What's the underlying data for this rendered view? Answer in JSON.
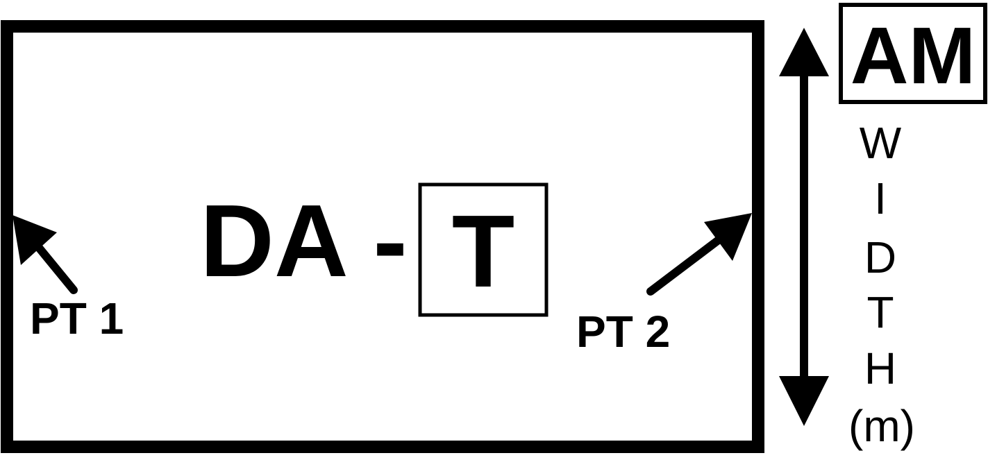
{
  "diagram": {
    "main_label_prefix": "DA -",
    "main_label_boxed": "T",
    "point_left_label": "PT 1",
    "point_right_label": "PT 2",
    "corner_box_label": "AM",
    "width_label_letters": [
      "W",
      "I",
      "D",
      "T",
      "H"
    ],
    "width_unit": "(m)"
  },
  "colors": {
    "stroke": "#000000",
    "background": "#ffffff"
  }
}
